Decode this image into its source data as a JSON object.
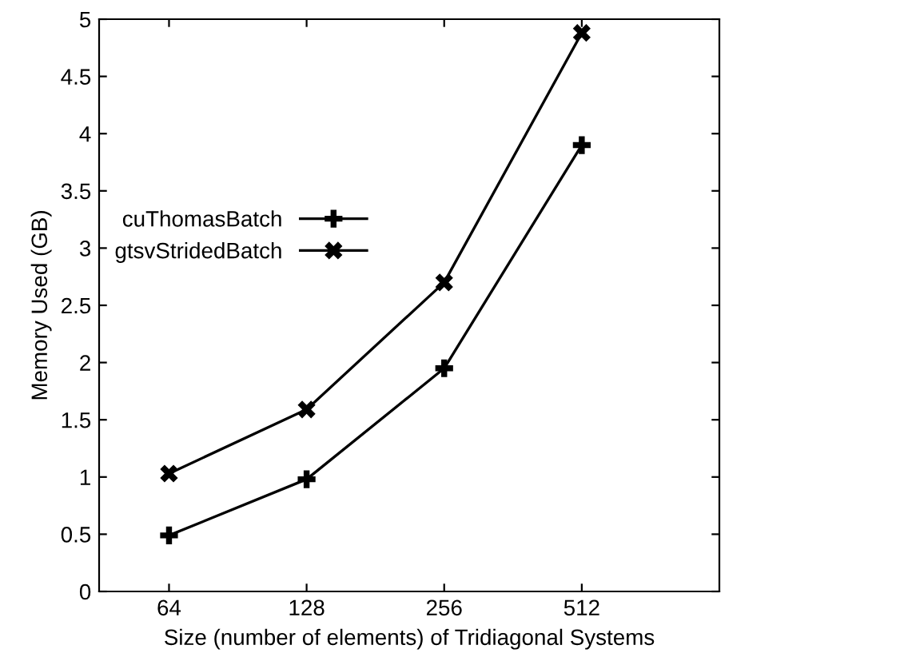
{
  "chart_data": {
    "type": "line",
    "xlabel": "Size (number of elements) of Tridiagonal Systems",
    "ylabel": "Memory Used (GB)",
    "x": [
      64,
      128,
      256,
      512
    ],
    "log": "x",
    "xlim": [
      45,
      1024
    ],
    "xticks": [
      64,
      128,
      256,
      512
    ],
    "series": [
      {
        "name": "cuThomasBatch",
        "color": "#000000",
        "marker": "cross",
        "values": [
          0.49,
          0.98,
          1.95,
          3.9
        ]
      },
      {
        "name": "gtsvStridedBatch",
        "color": "#000000",
        "marker": "cross",
        "values": [
          1.03,
          1.59,
          2.7,
          4.88
        ]
      }
    ],
    "ylim": [
      0,
      5
    ],
    "yticks": [
      0,
      0.5,
      1,
      1.5,
      2,
      2.5,
      3,
      3.5,
      4,
      4.5,
      5
    ],
    "legend": "left",
    "line_style": "solid",
    "grid": false
  }
}
